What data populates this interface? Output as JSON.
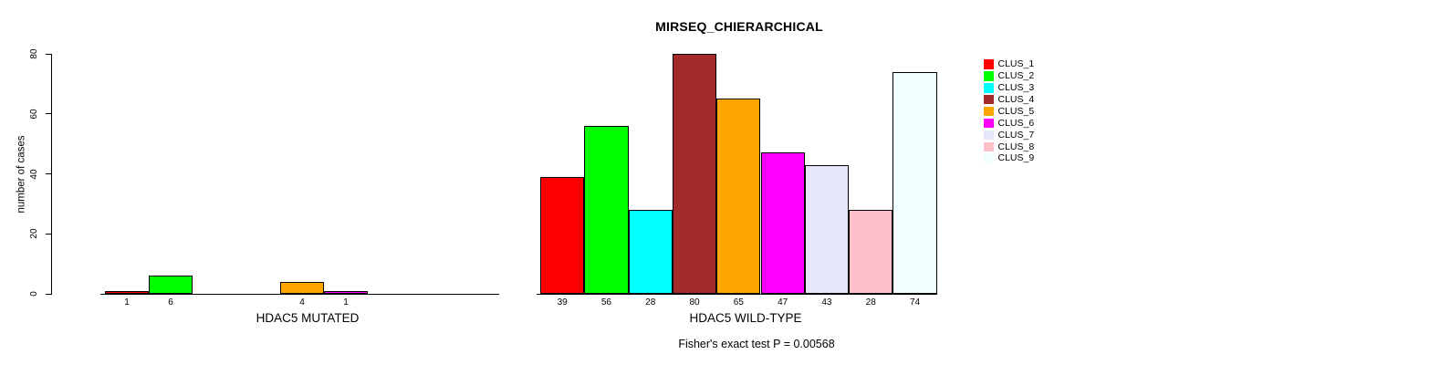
{
  "chart_data": {
    "type": "bar",
    "title": "MIRSEQ_CHIERARCHICAL",
    "ylabel": "number of cases",
    "ylim": [
      0,
      80
    ],
    "yticks": [
      0,
      20,
      40,
      60,
      80
    ],
    "grid": false,
    "legend_position": "right",
    "categories": [
      "CLUS_1",
      "CLUS_2",
      "CLUS_3",
      "CLUS_4",
      "CLUS_5",
      "CLUS_6",
      "CLUS_7",
      "CLUS_8",
      "CLUS_9"
    ],
    "colors": [
      "#FF0000",
      "#00FF00",
      "#00FFFF",
      "#A52A2A",
      "#FFA500",
      "#FF00FF",
      "#E6E6FA",
      "#FFC0CB",
      "#F0FFFF"
    ],
    "series": [
      {
        "name": "HDAC5 MUTATED",
        "values": [
          1,
          6,
          0,
          0,
          4,
          1,
          0,
          0,
          0
        ]
      },
      {
        "name": "HDAC5 WILD-TYPE",
        "values": [
          39,
          56,
          28,
          80,
          65,
          47,
          43,
          28,
          74
        ]
      }
    ],
    "bar_value_labels_shown_only_when_nonzero": true,
    "annotation": "Fisher's exact test P = 0.00568",
    "axis_color": "#000000",
    "bar_border_color": "#000000",
    "background_color": "#FFFFFF"
  }
}
